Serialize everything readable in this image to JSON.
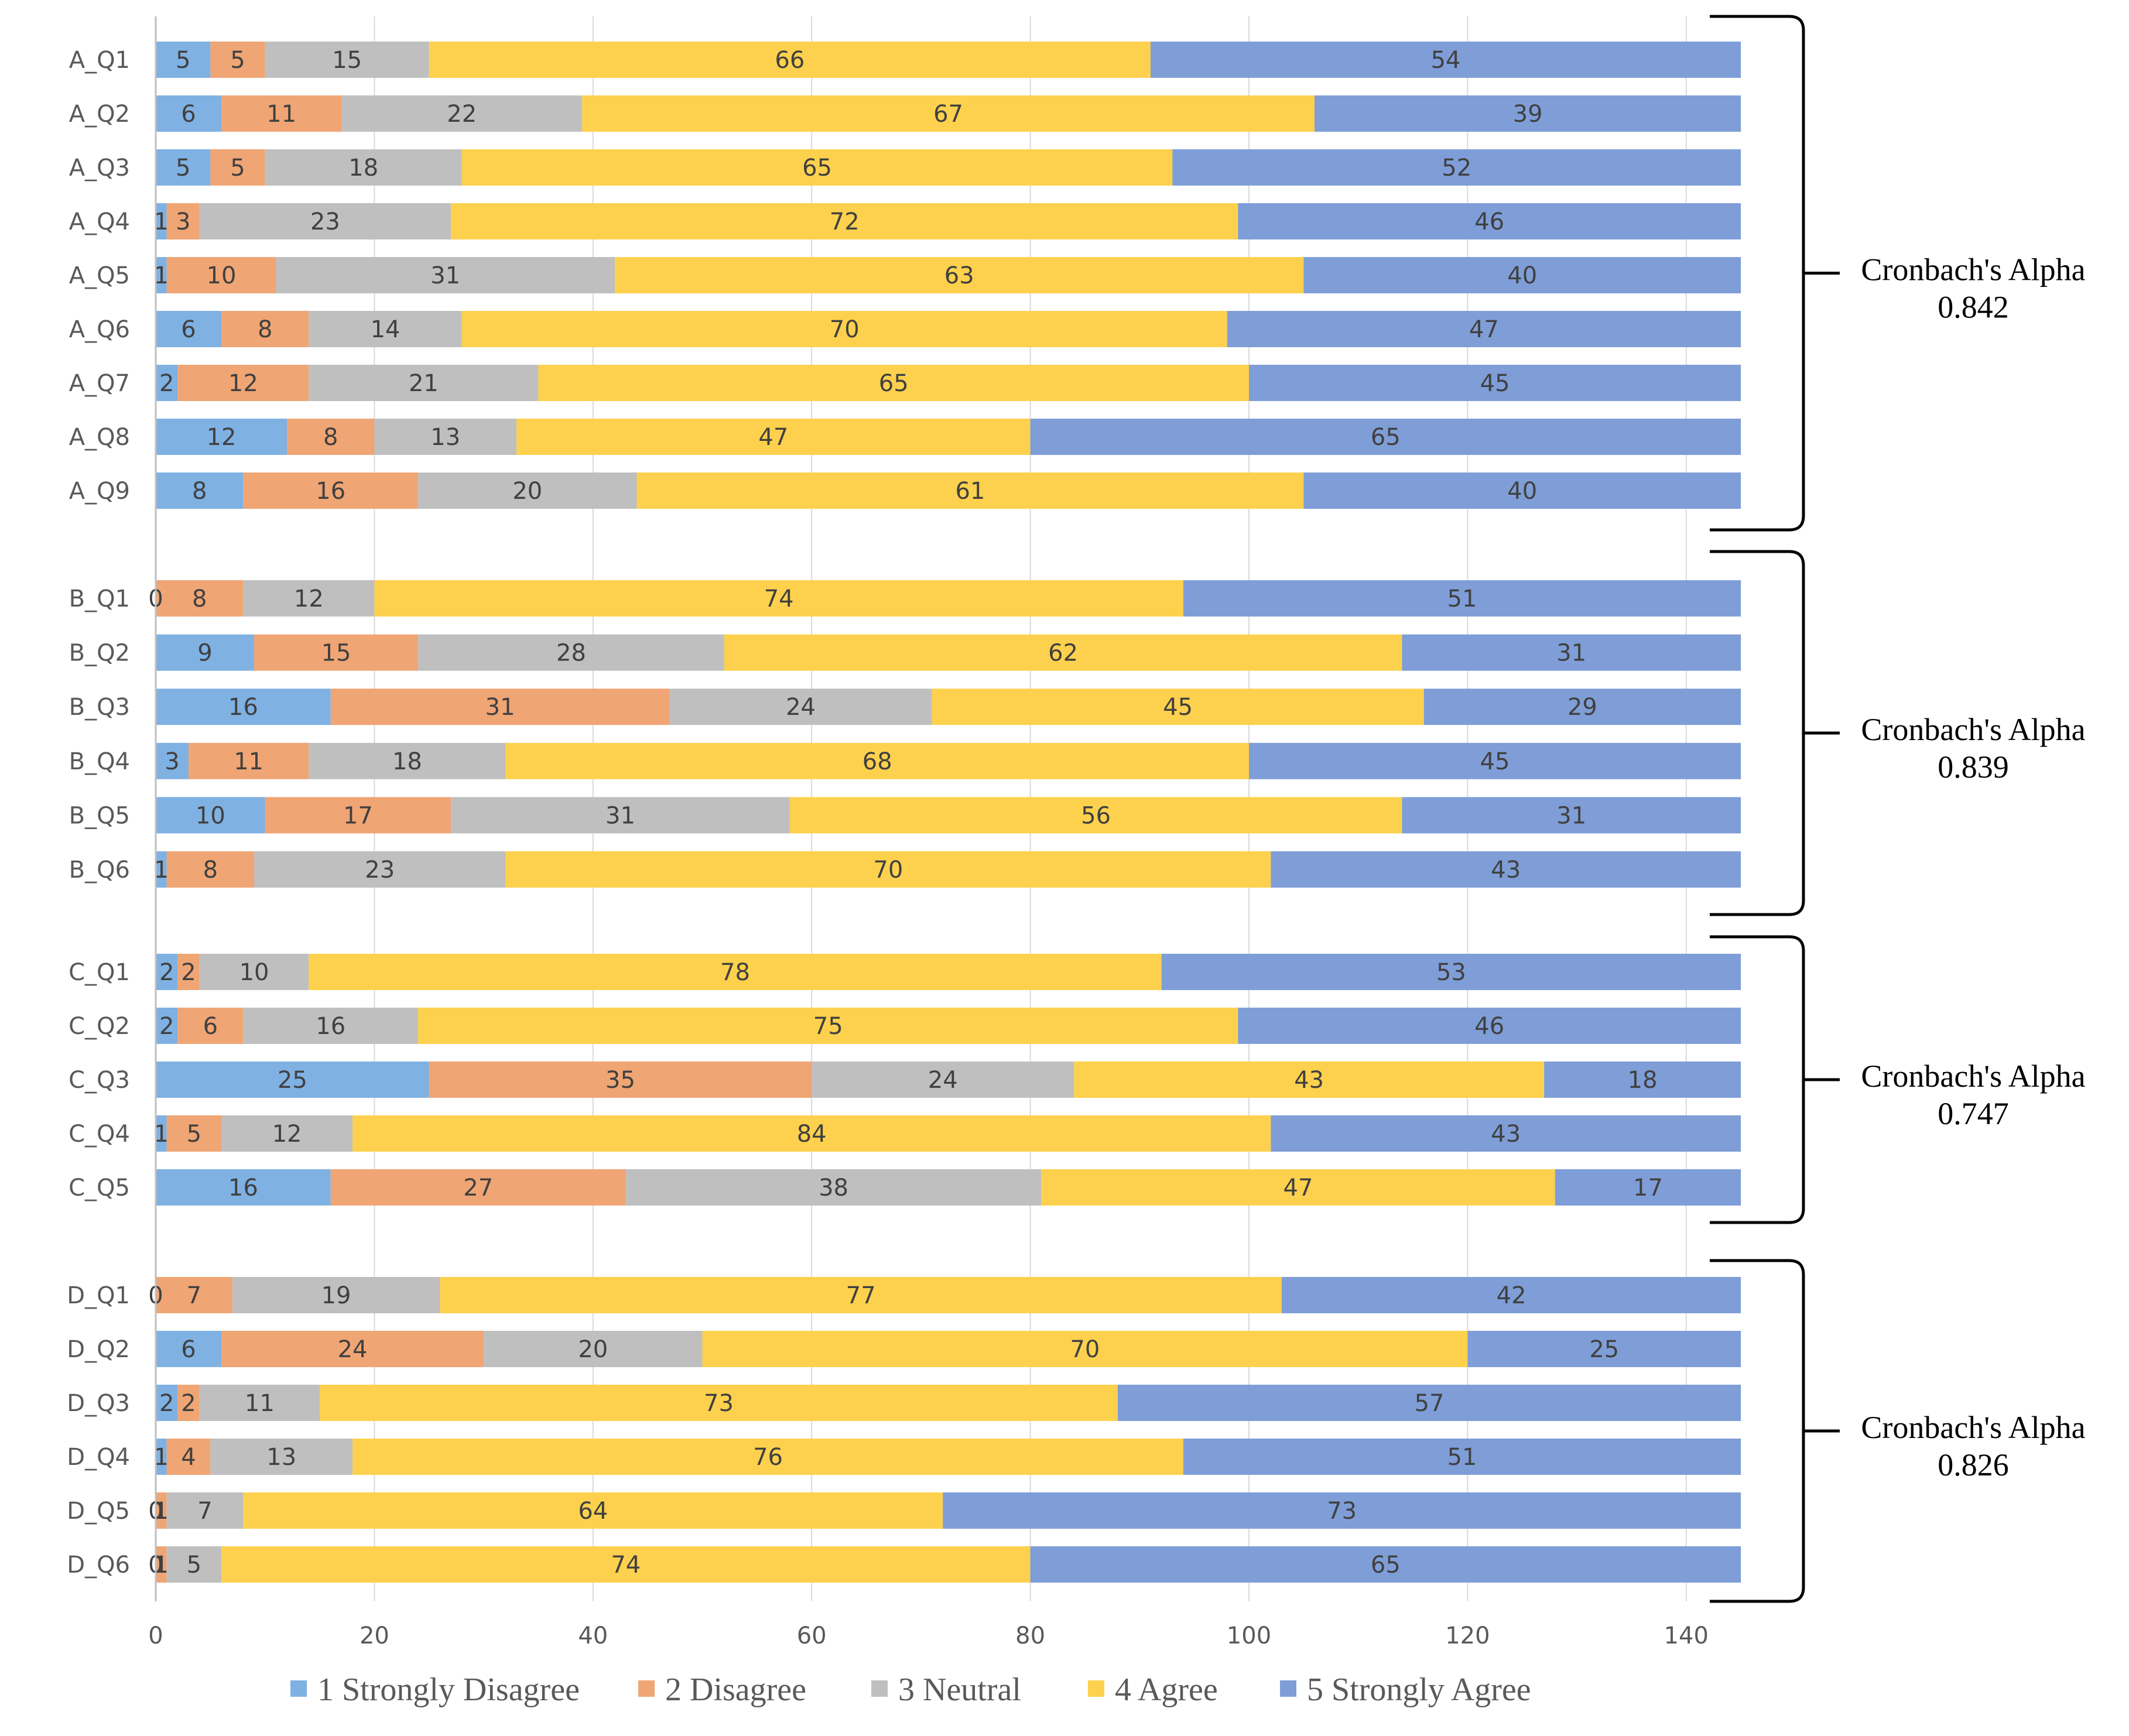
{
  "chart_data": {
    "type": "bar",
    "orientation": "horizontal",
    "stacked": true,
    "title": "",
    "xlabel": "",
    "ylabel": "",
    "xlim": [
      0,
      145
    ],
    "x_ticks": [
      0,
      20,
      40,
      60,
      80,
      100,
      120,
      140
    ],
    "grid": true,
    "legend_position": "bottom",
    "series": [
      {
        "name": "1 Strongly Disagree",
        "color": "#7fb1e3"
      },
      {
        "name": "2 Disagree",
        "color": "#f0a574"
      },
      {
        "name": "3 Neutral",
        "color": "#bfbfbf"
      },
      {
        "name": "4 Agree",
        "color": "#fdd14d"
      },
      {
        "name": "5 Strongly Agree",
        "color": "#7f9ed8"
      }
    ],
    "groups": [
      {
        "alpha_label": "Cronbach's Alpha",
        "alpha_value": "0.842",
        "rows": [
          {
            "label": "A_Q1",
            "values": [
              5,
              5,
              15,
              66,
              54
            ]
          },
          {
            "label": "A_Q2",
            "values": [
              6,
              11,
              22,
              67,
              39
            ]
          },
          {
            "label": "A_Q3",
            "values": [
              5,
              5,
              18,
              65,
              52
            ]
          },
          {
            "label": "A_Q4",
            "values": [
              1,
              3,
              23,
              72,
              46
            ]
          },
          {
            "label": "A_Q5",
            "values": [
              1,
              10,
              31,
              63,
              40
            ]
          },
          {
            "label": "A_Q6",
            "values": [
              6,
              8,
              14,
              70,
              47
            ]
          },
          {
            "label": "A_Q7",
            "values": [
              2,
              12,
              21,
              65,
              45
            ]
          },
          {
            "label": "A_Q8",
            "values": [
              12,
              8,
              13,
              47,
              65
            ]
          },
          {
            "label": "A_Q9",
            "values": [
              8,
              16,
              20,
              61,
              40
            ]
          }
        ]
      },
      {
        "alpha_label": "Cronbach's Alpha",
        "alpha_value": "0.839",
        "rows": [
          {
            "label": "B_Q1",
            "values": [
              0,
              8,
              12,
              74,
              51
            ]
          },
          {
            "label": "B_Q2",
            "values": [
              9,
              15,
              28,
              62,
              31
            ]
          },
          {
            "label": "B_Q3",
            "values": [
              16,
              31,
              24,
              45,
              29
            ]
          },
          {
            "label": "B_Q4",
            "values": [
              3,
              11,
              18,
              68,
              45
            ]
          },
          {
            "label": "B_Q5",
            "values": [
              10,
              17,
              31,
              56,
              31
            ]
          },
          {
            "label": "B_Q6",
            "values": [
              1,
              8,
              23,
              70,
              43
            ]
          }
        ]
      },
      {
        "alpha_label": "Cronbach's Alpha",
        "alpha_value": "0.747",
        "rows": [
          {
            "label": "C_Q1",
            "values": [
              2,
              2,
              10,
              78,
              53
            ]
          },
          {
            "label": "C_Q2",
            "values": [
              2,
              6,
              16,
              75,
              46
            ]
          },
          {
            "label": "C_Q3",
            "values": [
              25,
              35,
              24,
              43,
              18
            ]
          },
          {
            "label": "C_Q4",
            "values": [
              1,
              5,
              12,
              84,
              43
            ]
          },
          {
            "label": "C_Q5",
            "values": [
              16,
              27,
              38,
              47,
              17
            ]
          }
        ]
      },
      {
        "alpha_label": "Cronbach's Alpha",
        "alpha_value": "0.826",
        "rows": [
          {
            "label": "D_Q1",
            "values": [
              0,
              7,
              19,
              77,
              42
            ]
          },
          {
            "label": "D_Q2",
            "values": [
              6,
              24,
              20,
              70,
              25
            ]
          },
          {
            "label": "D_Q3",
            "values": [
              2,
              2,
              11,
              73,
              57
            ]
          },
          {
            "label": "D_Q4",
            "values": [
              1,
              4,
              13,
              76,
              51
            ]
          },
          {
            "label": "D_Q5",
            "values": [
              0,
              1,
              7,
              64,
              73
            ]
          },
          {
            "label": "D_Q6",
            "values": [
              0,
              1,
              5,
              74,
              65
            ]
          }
        ]
      }
    ]
  }
}
